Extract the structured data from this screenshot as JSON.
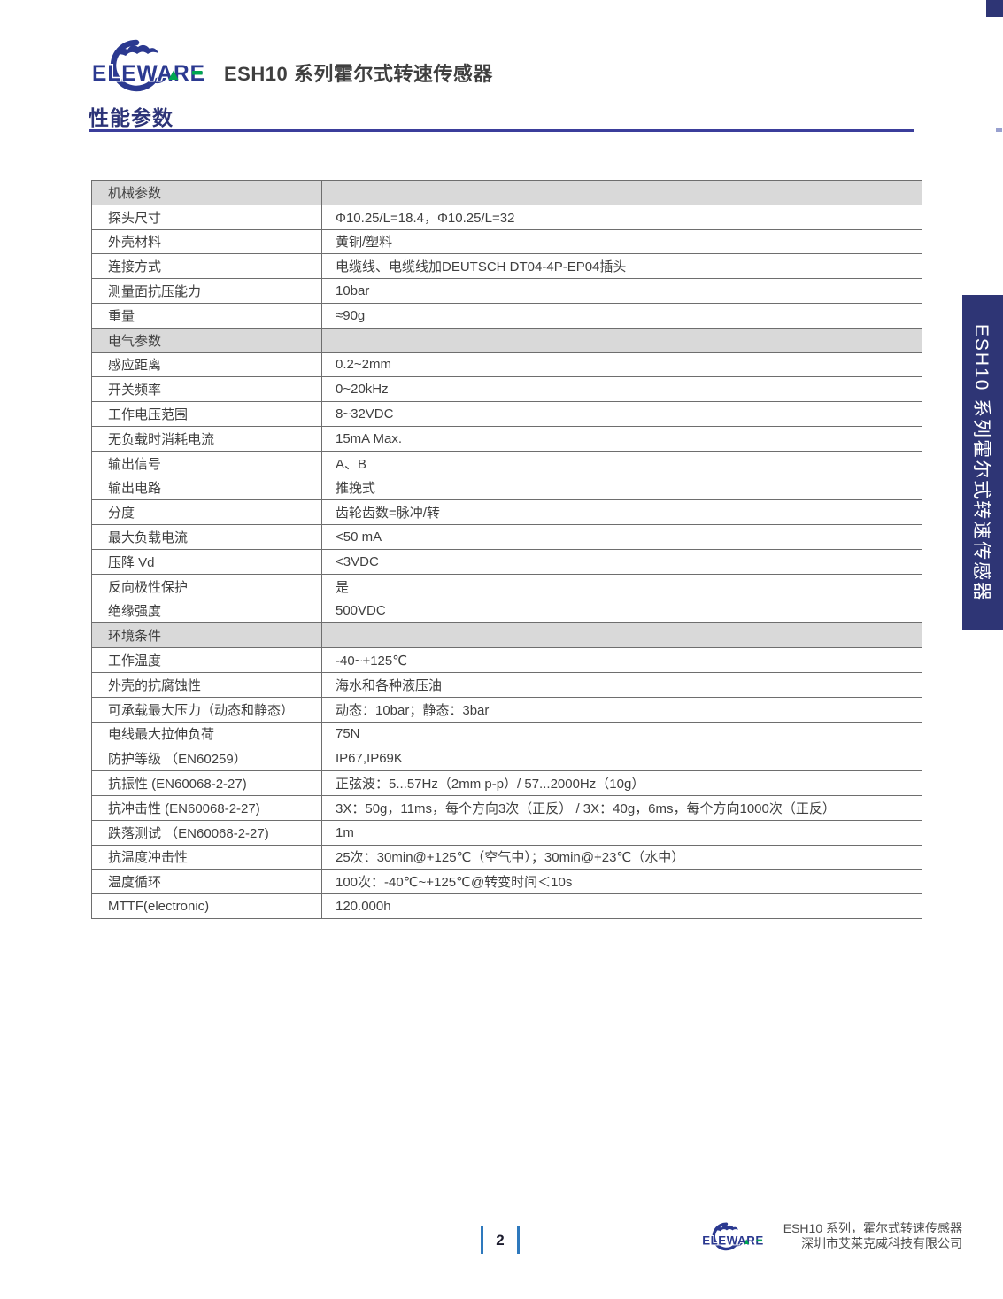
{
  "header": {
    "logo_text": "ELEWARE",
    "title": "ESH10 系列霍尔式转速传感器"
  },
  "section": {
    "title": "性能参数"
  },
  "side_banner": {
    "text": "ESH10 系列霍尔式转速传感器"
  },
  "table": {
    "rows": [
      {
        "type": "section",
        "label": "机械参数",
        "value": ""
      },
      {
        "type": "data",
        "label": "探头尺寸",
        "value": "Φ10.25/L=18.4，Φ10.25/L=32"
      },
      {
        "type": "data",
        "label": "外壳材料",
        "value": "黄铜/塑料"
      },
      {
        "type": "data",
        "label": "连接方式",
        "value": "电缆线、电缆线加DEUTSCH DT04-4P-EP04插头"
      },
      {
        "type": "data",
        "label": "测量面抗压能力",
        "value": "10bar"
      },
      {
        "type": "data",
        "label": "重量",
        "value": "≈90g"
      },
      {
        "type": "section",
        "label": "电气参数",
        "value": ""
      },
      {
        "type": "data",
        "label": "感应距离",
        "value": "0.2~2mm"
      },
      {
        "type": "data",
        "label": "开关频率",
        "value": "0~20kHz"
      },
      {
        "type": "data",
        "label": "工作电压范围",
        "value": "8~32VDC"
      },
      {
        "type": "data",
        "label": "无负载时消耗电流",
        "value": "15mA Max."
      },
      {
        "type": "data",
        "label": "输出信号",
        "value": "A、B"
      },
      {
        "type": "data",
        "label": "输出电路",
        "value": "推挽式"
      },
      {
        "type": "data",
        "label": "分度",
        "value": "齿轮齿数=脉冲/转"
      },
      {
        "type": "data",
        "label": "最大负载电流",
        "value": "<50 mA"
      },
      {
        "type": "data",
        "label": "压降 Vd",
        "value": "<3VDC"
      },
      {
        "type": "data",
        "label": "反向极性保护",
        "value": "是"
      },
      {
        "type": "data",
        "label": "绝缘强度",
        "value": "500VDC"
      },
      {
        "type": "section",
        "label": "环境条件",
        "value": ""
      },
      {
        "type": "data",
        "label": "工作温度",
        "value": "-40~+125℃"
      },
      {
        "type": "data",
        "label": "外壳的抗腐蚀性",
        "value": "海水和各种液压油"
      },
      {
        "type": "data",
        "label": "可承载最大压力（动态和静态）",
        "value": "动态：10bar；静态：3bar"
      },
      {
        "type": "data",
        "label": "电线最大拉伸负荷",
        "value": "75N"
      },
      {
        "type": "data",
        "label": "防护等级 （EN60259）",
        "value": "IP67,IP69K"
      },
      {
        "type": "data",
        "label": "抗振性 (EN60068-2-27)",
        "value": "正弦波：5...57Hz（2mm p-p）/ 57...2000Hz（10g）"
      },
      {
        "type": "data",
        "label": "抗冲击性 (EN60068-2-27)",
        "value": "3X：50g，11ms，每个方向3次（正反） / 3X：40g，6ms，每个方向1000次（正反）"
      },
      {
        "type": "data",
        "label": "跌落测试 （EN60068-2-27)",
        "value": "1m"
      },
      {
        "type": "data",
        "label": "抗温度冲击性",
        "value": "25次：30min@+125℃（空气中）；30min@+23℃（水中）"
      },
      {
        "type": "data",
        "label": "温度循环",
        "value": "100次：-40℃~+125℃@转变时间＜10s"
      },
      {
        "type": "data",
        "label": "MTTF(electronic)",
        "value": "120.000h"
      }
    ]
  },
  "footer": {
    "page_number": "2",
    "logo_text": "ELEWARE",
    "product_line": "ESH10 系列，霍尔式转速传感器",
    "company": "深圳市艾莱克威科技有限公司"
  },
  "colors": {
    "navy_banner": "#2e3575",
    "logo_blue": "#2b3990",
    "logo_green": "#00a651",
    "heading_navy": "#2c3377",
    "underline_blue": "#3b3e9b",
    "section_row_bg": "#d9d9d9",
    "table_border": "#6e6e6e",
    "page_bar_blue": "#2e79bd",
    "body_text": "#3f3f3f"
  }
}
